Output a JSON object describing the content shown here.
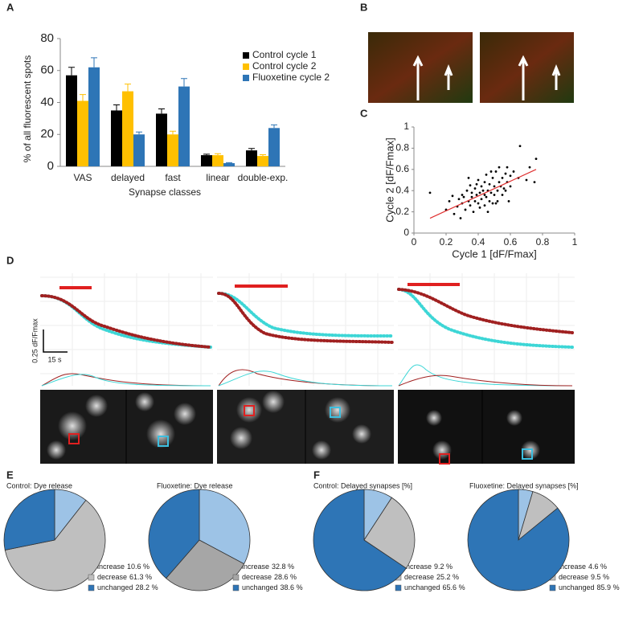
{
  "panel_labels": [
    "A",
    "B",
    "C",
    "D",
    "E",
    "F"
  ],
  "panel_d": {
    "scale_y": "0.25 dF/Fmax",
    "scale_x": "15 s"
  },
  "chart_data": [
    {
      "type": "bar",
      "ylabel": "% of all fluorescent spots",
      "xlabel": "Synapse classes",
      "categories": [
        "VAS",
        "delayed",
        "fast",
        "linear",
        "double-exp."
      ],
      "ylim": [
        0,
        80
      ],
      "yticks": [
        0,
        20,
        40,
        60,
        80
      ],
      "series": [
        {
          "name": "Control cycle 1",
          "color": "#000000",
          "values": [
            57,
            35,
            33,
            7,
            10
          ],
          "errors": [
            5,
            3.5,
            3,
            0.6,
            1.2
          ]
        },
        {
          "name": "Control cycle 2",
          "color": "#ffc000",
          "values": [
            41,
            47,
            20,
            7,
            6.5
          ],
          "errors": [
            4,
            4.5,
            2,
            0.9,
            0.8
          ]
        },
        {
          "name": "Fluoxetine cycle 2",
          "color": "#2e75b6",
          "values": [
            62,
            20,
            50,
            2,
            24
          ],
          "errors": [
            6,
            1.5,
            5,
            0.3,
            2
          ]
        }
      ]
    },
    {
      "type": "scatter",
      "xlabel": "Cycle 1 [dF/Fmax]",
      "ylabel": "Cycle 2 [dF/Fmax]",
      "xlim": [
        0,
        1
      ],
      "ylim": [
        0,
        1
      ],
      "xticks": [
        0,
        0.2,
        0.4,
        0.6,
        0.8,
        1
      ],
      "yticks": [
        0,
        0.2,
        0.4,
        0.6,
        0.8,
        1
      ],
      "color": "#000000",
      "x": [
        0.1,
        0.2,
        0.22,
        0.25,
        0.27,
        0.28,
        0.3,
        0.3,
        0.32,
        0.33,
        0.34,
        0.35,
        0.35,
        0.36,
        0.37,
        0.38,
        0.38,
        0.39,
        0.4,
        0.4,
        0.41,
        0.42,
        0.42,
        0.43,
        0.44,
        0.44,
        0.45,
        0.45,
        0.46,
        0.47,
        0.47,
        0.48,
        0.49,
        0.5,
        0.5,
        0.51,
        0.52,
        0.52,
        0.53,
        0.54,
        0.55,
        0.55,
        0.56,
        0.57,
        0.58,
        0.58,
        0.6,
        0.6,
        0.62,
        0.65,
        0.66,
        0.7,
        0.72,
        0.75,
        0.76,
        0.29,
        0.31,
        0.36,
        0.41,
        0.46,
        0.48,
        0.51,
        0.53,
        0.57,
        0.59,
        0.24,
        0.34,
        0.44,
        0.39,
        0.49
      ],
      "y": [
        0.38,
        0.22,
        0.3,
        0.18,
        0.25,
        0.32,
        0.28,
        0.36,
        0.22,
        0.4,
        0.3,
        0.26,
        0.45,
        0.34,
        0.2,
        0.3,
        0.42,
        0.36,
        0.28,
        0.5,
        0.38,
        0.32,
        0.44,
        0.4,
        0.26,
        0.48,
        0.34,
        0.55,
        0.4,
        0.3,
        0.46,
        0.38,
        0.52,
        0.36,
        0.44,
        0.58,
        0.4,
        0.3,
        0.48,
        0.44,
        0.36,
        0.52,
        0.42,
        0.56,
        0.48,
        0.62,
        0.44,
        0.54,
        0.58,
        0.52,
        0.82,
        0.5,
        0.62,
        0.48,
        0.7,
        0.14,
        0.34,
        0.38,
        0.24,
        0.2,
        0.58,
        0.28,
        0.62,
        0.4,
        0.3,
        0.35,
        0.52,
        0.36,
        0.46,
        0.28
      ],
      "trendline": {
        "x": [
          0.1,
          0.76
        ],
        "y": [
          0.14,
          0.6
        ],
        "color": "#e03030"
      }
    },
    {
      "type": "pie",
      "title": "Control: Dye release",
      "categories": [
        "increase",
        "decrease",
        "unchanged"
      ],
      "values": [
        10.6,
        61.3,
        28.2
      ],
      "value_labels": [
        "10.6 %",
        "61.3 %",
        "28.2 %"
      ],
      "colors": [
        "#9dc3e6",
        "#bfbfbf",
        "#2e75b6"
      ]
    },
    {
      "type": "pie",
      "title": "Fluoxetine: Dye release",
      "categories": [
        "increase",
        "decrease",
        "unchanged"
      ],
      "values": [
        32.8,
        28.6,
        38.6
      ],
      "value_labels": [
        "32.8 %",
        "28.6 %",
        "38.6 %"
      ],
      "colors": [
        "#9dc3e6",
        "#a6a6a6",
        "#2e75b6"
      ]
    },
    {
      "type": "pie",
      "title": "Control: Delayed synapses [%]",
      "categories": [
        "increase",
        "decrease",
        "unchanged"
      ],
      "values": [
        9.2,
        25.2,
        65.6
      ],
      "value_labels": [
        "9.2 %",
        "25.2 %",
        "65.6 %"
      ],
      "colors": [
        "#9dc3e6",
        "#bfbfbf",
        "#2e75b6"
      ]
    },
    {
      "type": "pie",
      "title": "Fluoxetine: Delayed synapses [%]",
      "categories": [
        "increase",
        "decrease",
        "unchanged"
      ],
      "values": [
        4.6,
        9.5,
        85.9
      ],
      "value_labels": [
        "4.6 %",
        "9.5 %",
        "85.9 %"
      ],
      "colors": [
        "#9dc3e6",
        "#bfbfbf",
        "#2e75b6"
      ]
    }
  ]
}
